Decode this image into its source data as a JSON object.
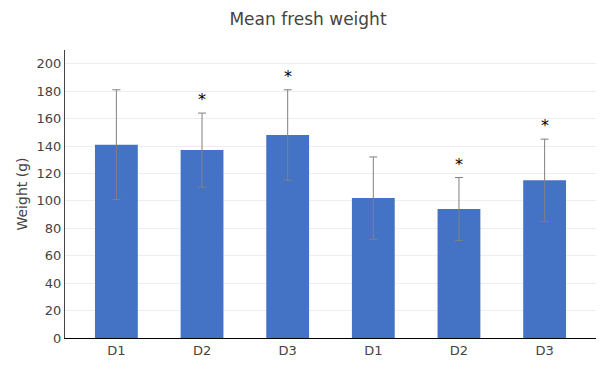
{
  "chart_data": {
    "type": "bar",
    "title": "Mean fresh weight",
    "ylabel": "Weight (g)",
    "categories": [
      "D1",
      "D2",
      "D3",
      "D1",
      "D2",
      "D3"
    ],
    "values": [
      141,
      137,
      148,
      102,
      94,
      115
    ],
    "errors": [
      40,
      27,
      33,
      30,
      23,
      30
    ],
    "annotations": [
      null,
      "*",
      "*",
      null,
      "*",
      "*"
    ],
    "color": "#4472C4",
    "ylim": [
      0,
      210
    ],
    "yticks": [
      0,
      20,
      40,
      60,
      80,
      100,
      120,
      140,
      160,
      180,
      200
    ],
    "grid": true
  }
}
